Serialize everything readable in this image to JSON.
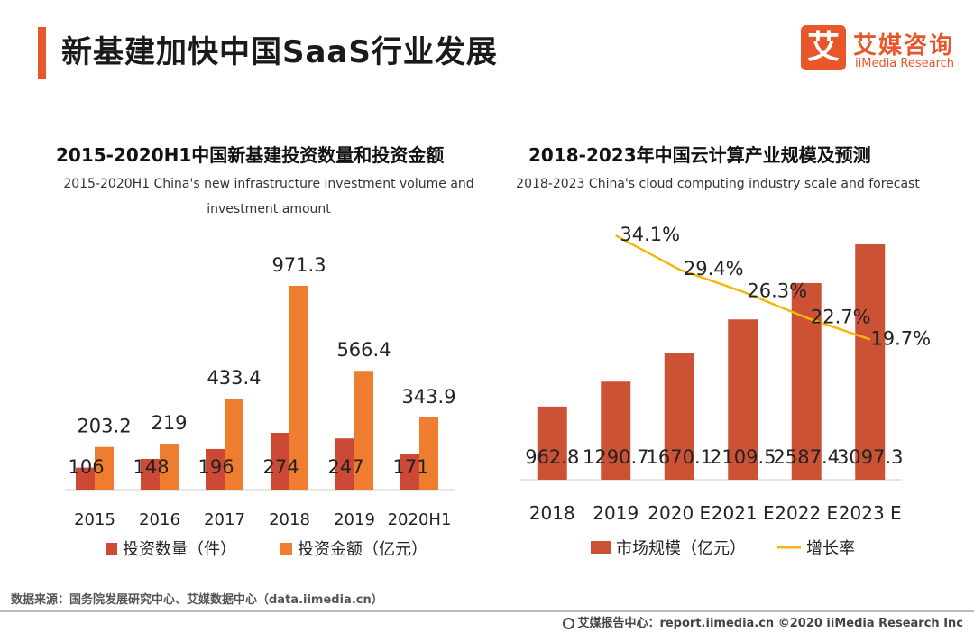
{
  "header": {
    "title": "新基建加快中国SaaS行业发展",
    "logo_mark": "艾",
    "logo_cn": "艾媒咨询",
    "logo_en": "iiMedia Research"
  },
  "colors": {
    "accent": "#e8562a",
    "series_count": "#cc4a35",
    "series_amount": "#ee7d30",
    "market_bar": "#cc5236",
    "growth_line": "#f5b70d"
  },
  "chart_data": [
    {
      "type": "bar",
      "title": "2015-2020H1中国新基建投资数量和投资金额",
      "subtitle": "2015-2020H1 China's new infrastructure investment volume and investment amount",
      "categories": [
        "2015",
        "2016",
        "2017",
        "2018",
        "2019",
        "2020H1"
      ],
      "series": [
        {
          "name": "投资数量（件）",
          "values": [
            106,
            148,
            196,
            274,
            247,
            171
          ]
        },
        {
          "name": "投资金额（亿元）",
          "values": [
            203.2,
            219,
            433.4,
            971.3,
            566.4,
            343.9
          ]
        }
      ],
      "data_labels": {
        "series_0": [
          "106",
          "148",
          "196",
          "274",
          "247",
          "171"
        ],
        "series_1": [
          "203.2",
          "219",
          "433.4",
          "971.3",
          "566.4",
          "343.9"
        ]
      },
      "legend": "bottom"
    },
    {
      "type": "bar",
      "title": "2018-2023年中国云计算产业规模及预测",
      "subtitle": "2018-2023 China's cloud computing industry scale and forecast",
      "categories": [
        "2018",
        "2019",
        "2020 E",
        "2021 E",
        "2022 E",
        "2023 E"
      ],
      "series": [
        {
          "name": "市场规模（亿元）",
          "type": "bar",
          "values": [
            962.8,
            1290.7,
            1670.1,
            2109.5,
            2587.4,
            3097.3
          ]
        },
        {
          "name": "增长率",
          "type": "line",
          "values": [
            null,
            34.1,
            29.4,
            26.3,
            22.7,
            19.7
          ]
        }
      ],
      "data_labels": {
        "series_0": [
          "962.8",
          "1290.7",
          "1670.1",
          "2109.5",
          "2587.4",
          "3097.3"
        ],
        "series_1": [
          "",
          "34.1%",
          "29.4%",
          "26.3%",
          "22.7%",
          "19.7%"
        ]
      },
      "legend": "bottom"
    }
  ],
  "footer": {
    "source": "数据来源：国务院发展研究中心、艾媒数据中心（data.iimedia.cn）",
    "copyright": "艾媒报告中心：report.iimedia.cn   ©2020  iiMedia Research  Inc"
  }
}
